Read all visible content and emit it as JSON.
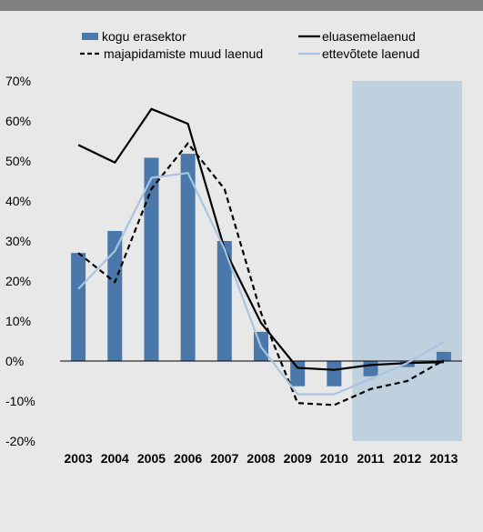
{
  "chart_data": {
    "type": "bar",
    "categories": [
      "2003",
      "2004",
      "2005",
      "2006",
      "2007",
      "2008",
      "2009",
      "2010",
      "2011",
      "2012",
      "2013"
    ],
    "ylim": [
      -20,
      70
    ],
    "yticks": [
      70,
      60,
      50,
      40,
      30,
      20,
      10,
      0,
      -10,
      -20
    ],
    "ytick_labels": [
      "70%",
      "60%",
      "50%",
      "40%",
      "30%",
      "20%",
      "10%",
      "0%",
      "-10%",
      "-20%"
    ],
    "shaded_region": {
      "from": "2011",
      "to": "2013",
      "color": "#bfd0df"
    },
    "legend_placement": "top",
    "grid": false,
    "series": [
      {
        "name": "kogu erasektor",
        "kind": "bar",
        "color": "#4a78aa",
        "values": [
          27,
          32.5,
          50.8,
          51.8,
          30,
          7.3,
          -6.3,
          -6.3,
          -3.8,
          -1.5,
          2.3
        ]
      },
      {
        "name": "eluasemelaenud",
        "kind": "line",
        "style": "solid",
        "color": "#000000",
        "values": [
          54,
          49.6,
          63,
          59.3,
          28,
          9.5,
          -1.7,
          -2.2,
          -1.0,
          -0.5,
          -0.3
        ]
      },
      {
        "name": "majapidamiste muud laenud",
        "kind": "line",
        "style": "dashed",
        "color": "#000000",
        "values": [
          27,
          19.7,
          43,
          54.4,
          43,
          12,
          -10.5,
          -11,
          -7,
          -5,
          0.2
        ]
      },
      {
        "name": "ettevõtete laenud",
        "kind": "line",
        "style": "solid",
        "color": "#a9c4e0",
        "values": [
          18,
          27.5,
          45.8,
          47,
          28,
          3.5,
          -8.3,
          -8.3,
          -4.5,
          -0.5,
          4.8
        ]
      }
    ]
  }
}
